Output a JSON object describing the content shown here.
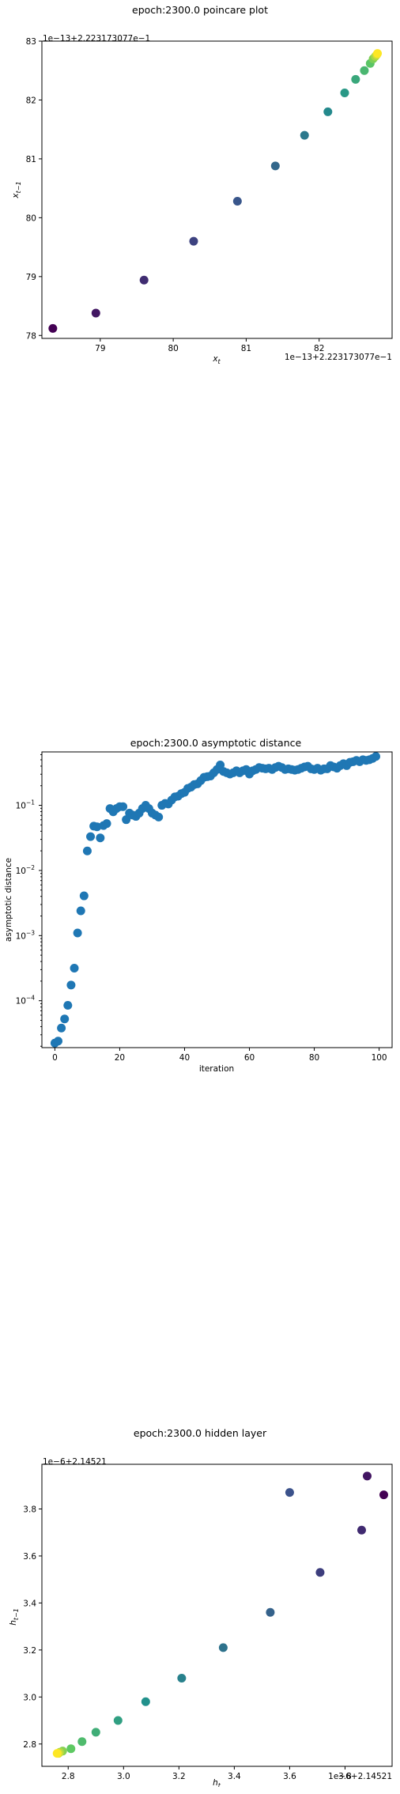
{
  "chart_data": [
    {
      "type": "scatter",
      "title": "epoch:2300.0 poincare plot",
      "xlabel": "x_t",
      "ylabel": "x_{t-1}",
      "offset_label": "1e−13+2.223173077e−1",
      "x_offset_label": "1e−13+2.223173077e−1",
      "y_offset_label": "1e−13+2.223173077e−1",
      "xlim": [
        78.2,
        83.0
      ],
      "ylim": [
        77.95,
        83.0
      ],
      "xticks": [
        79,
        80,
        81,
        82
      ],
      "yticks": [
        78,
        79,
        80,
        81,
        82,
        83
      ],
      "xtick_labels": [
        "79",
        "80",
        "81",
        "82"
      ],
      "ytick_labels": [
        "78",
        "79",
        "80",
        "81",
        "82",
        "83"
      ],
      "x": [
        78.35,
        78.94,
        79.6,
        80.28,
        80.88,
        81.4,
        81.8,
        82.12,
        82.35,
        82.5,
        82.62,
        82.7,
        82.74,
        82.77,
        82.79,
        82.8
      ],
      "y": [
        78.12,
        78.38,
        78.94,
        79.6,
        80.28,
        80.88,
        81.4,
        81.8,
        82.12,
        82.35,
        82.5,
        82.62,
        82.7,
        82.74,
        82.77,
        82.79
      ],
      "colormap": "viridis",
      "grid": false
    },
    {
      "type": "scatter",
      "title": "epoch:2300.0 asymptotic distance",
      "xlabel": "iteration",
      "ylabel": "asymptotic distance",
      "yscale": "log",
      "xlim": [
        -4,
        104
      ],
      "ylim_exp": [
        -4.72,
        -0.18
      ],
      "xticks": [
        0,
        20,
        40,
        60,
        80,
        100
      ],
      "xtick_labels": [
        "0",
        "20",
        "40",
        "60",
        "80",
        "100"
      ],
      "ytick_exps": [
        -4,
        -3,
        -2,
        -1
      ],
      "ytick_labels": [
        "10",
        "10",
        "10",
        "10"
      ],
      "ytick_exp_labels": [
        "−4",
        "−3",
        "−2",
        "−1"
      ],
      "color": "#1f77b4",
      "x": [
        0,
        1,
        2,
        3,
        4,
        5,
        6,
        7,
        8,
        9,
        10,
        11,
        12,
        13,
        14,
        15,
        16,
        17,
        18,
        19,
        20,
        21,
        22,
        23,
        24,
        25,
        26,
        27,
        28,
        29,
        30,
        31,
        32,
        33,
        34,
        35,
        36,
        37,
        38,
        39,
        40,
        41,
        42,
        43,
        44,
        45,
        46,
        47,
        48,
        49,
        50,
        51,
        52,
        53,
        54,
        55,
        56,
        57,
        58,
        59,
        60,
        61,
        62,
        63,
        64,
        65,
        66,
        67,
        68,
        69,
        70,
        71,
        72,
        73,
        74,
        75,
        76,
        77,
        78,
        79,
        80,
        81,
        82,
        83,
        84,
        85,
        86,
        87,
        88,
        89,
        90,
        91,
        92,
        93,
        94,
        95,
        96,
        97,
        98,
        99
      ],
      "y_exp": [
        -4.65,
        -4.62,
        -4.42,
        -4.28,
        -4.07,
        -3.76,
        -3.5,
        -2.96,
        -2.62,
        -2.39,
        -1.7,
        -1.48,
        -1.32,
        -1.33,
        -1.5,
        -1.31,
        -1.28,
        -1.05,
        -1.1,
        -1.05,
        -1.02,
        -1.02,
        -1.22,
        -1.12,
        -1.15,
        -1.17,
        -1.12,
        -1.05,
        -1.0,
        -1.05,
        -1.12,
        -1.15,
        -1.18,
        -1.0,
        -0.97,
        -0.98,
        -0.92,
        -0.87,
        -0.86,
        -0.82,
        -0.8,
        -0.74,
        -0.72,
        -0.68,
        -0.67,
        -0.62,
        -0.57,
        -0.56,
        -0.55,
        -0.5,
        -0.45,
        -0.38,
        -0.48,
        -0.5,
        -0.52,
        -0.5,
        -0.47,
        -0.5,
        -0.47,
        -0.45,
        -0.52,
        -0.47,
        -0.45,
        -0.42,
        -0.43,
        -0.44,
        -0.43,
        -0.45,
        -0.42,
        -0.4,
        -0.42,
        -0.45,
        -0.44,
        -0.45,
        -0.46,
        -0.45,
        -0.43,
        -0.41,
        -0.4,
        -0.44,
        -0.45,
        -0.43,
        -0.46,
        -0.44,
        -0.44,
        -0.39,
        -0.41,
        -0.43,
        -0.39,
        -0.36,
        -0.39,
        -0.34,
        -0.33,
        -0.31,
        -0.33,
        -0.3,
        -0.31,
        -0.3,
        -0.28,
        -0.25
      ]
    },
    {
      "type": "scatter",
      "title": "epoch:2300.0 hidden layer",
      "xlabel": "h_t",
      "ylabel": "h_{t-1}",
      "offset_label": "1e−6+2.14521",
      "x_offset_label": "1e−6+2.14521",
      "y_offset_label": "1e−6+2.14521",
      "xlim": [
        2.705,
        3.97
      ],
      "ylim": [
        2.705,
        3.99
      ],
      "xticks": [
        2.8,
        3.0,
        3.2,
        3.4,
        3.6,
        3.8
      ],
      "yticks": [
        2.8,
        3.0,
        3.2,
        3.4,
        3.6,
        3.8
      ],
      "xtick_labels": [
        "2.8",
        "3.0",
        "3.2",
        "3.4",
        "3.6",
        "3.8"
      ],
      "ytick_labels": [
        "2.8",
        "3.0",
        "3.2",
        "3.4",
        "3.6",
        "3.8"
      ],
      "x": [
        3.94,
        3.88,
        3.86,
        3.71,
        3.6,
        3.53,
        3.36,
        3.21,
        3.08,
        2.98,
        2.9,
        2.85,
        2.81,
        2.78,
        2.77,
        2.765,
        2.76
      ],
      "y": [
        3.86,
        3.94,
        3.71,
        3.53,
        3.87,
        3.36,
        3.21,
        3.08,
        2.98,
        2.9,
        2.85,
        2.81,
        2.78,
        2.77,
        2.765,
        2.76,
        2.76
      ],
      "colormap": "viridis",
      "grid": false
    }
  ]
}
